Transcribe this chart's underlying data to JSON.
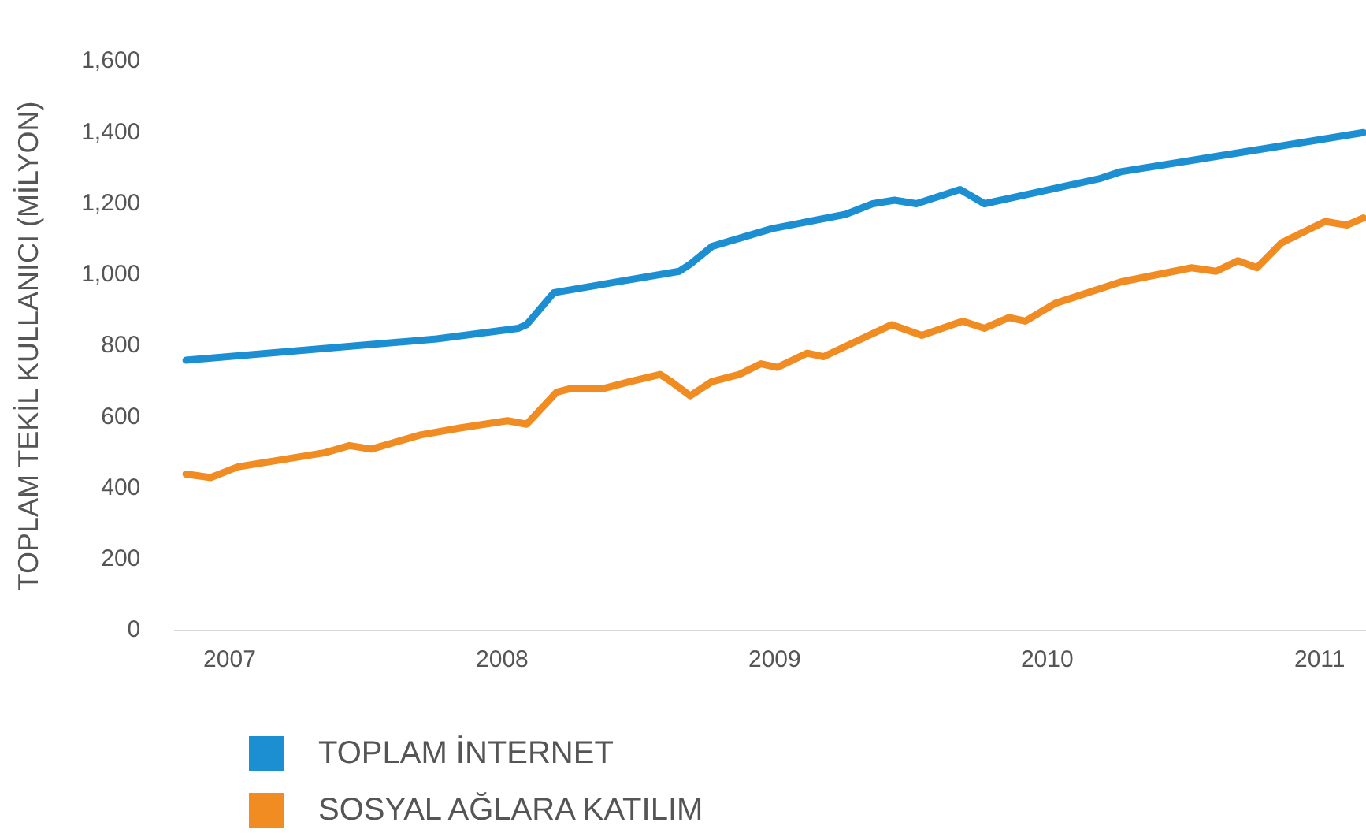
{
  "chart_data": {
    "type": "line",
    "ylabel": "TOPLAM TEKİL KULLANICI (MİLYON)",
    "xlim": [
      2006.8,
      2011.17
    ],
    "xticks": [
      2007,
      2008,
      2009,
      2010,
      2011
    ],
    "ylim": [
      0,
      1600
    ],
    "yticks": [
      {
        "value": 0,
        "label": "0"
      },
      {
        "value": 200,
        "label": "200"
      },
      {
        "value": 400,
        "label": "400"
      },
      {
        "value": 600,
        "label": "600"
      },
      {
        "value": 800,
        "label": "800"
      },
      {
        "value": 1000,
        "label": "1,000"
      },
      {
        "value": 1200,
        "label": "1,200"
      },
      {
        "value": 1400,
        "label": "1,400"
      },
      {
        "value": 1600,
        "label": "1,600"
      }
    ],
    "grid": false,
    "legend": "bottom",
    "marker": "none",
    "line_style": "solid",
    "series": [
      {
        "name": "TOPLAM İNTERNET",
        "color": "#1b8fd2",
        "x": [
          2006.84,
          2007.76,
          2008.06,
          2008.09,
          2008.19,
          2008.65,
          2008.69,
          2008.77,
          2008.99,
          2009.26,
          2009.36,
          2009.44,
          2009.52,
          2009.68,
          2009.77,
          2010.19,
          2010.27,
          2010.84,
          2011.16
        ],
        "values": [
          760,
          820,
          850,
          860,
          950,
          1010,
          1030,
          1080,
          1130,
          1170,
          1200,
          1210,
          1200,
          1240,
          1200,
          1270,
          1290,
          1360,
          1400
        ]
      },
      {
        "name": "SOSYAL AĞLARA KATILIM",
        "color": "#f08c22",
        "x": [
          2006.84,
          2006.93,
          2007.03,
          2007.35,
          2007.44,
          2007.52,
          2007.7,
          2007.85,
          2008.02,
          2008.09,
          2008.2,
          2008.25,
          2008.37,
          2008.47,
          2008.58,
          2008.62,
          2008.69,
          2008.77,
          2008.87,
          2008.95,
          2009.01,
          2009.12,
          2009.18,
          2009.43,
          2009.54,
          2009.69,
          2009.77,
          2009.86,
          2009.92,
          2010.03,
          2010.27,
          2010.53,
          2010.62,
          2010.7,
          2010.77,
          2010.86,
          2011.02,
          2011.1,
          2011.16
        ],
        "values": [
          440,
          430,
          460,
          500,
          520,
          510,
          550,
          570,
          590,
          580,
          670,
          680,
          680,
          700,
          720,
          700,
          660,
          700,
          720,
          750,
          740,
          780,
          770,
          860,
          830,
          870,
          850,
          880,
          870,
          920,
          980,
          1020,
          1010,
          1040,
          1020,
          1090,
          1150,
          1140,
          1160
        ]
      }
    ]
  }
}
